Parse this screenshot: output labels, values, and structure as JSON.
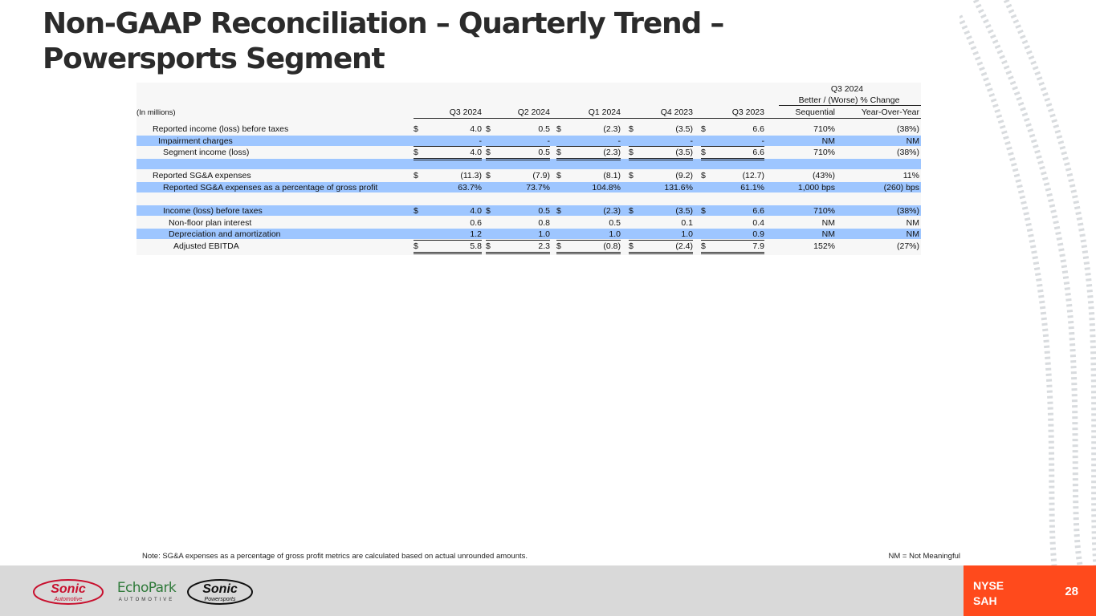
{
  "title": "Non-GAAP Reconciliation – Quarterly Trend – Powersports Segment",
  "table": {
    "unit_label": "(In millions)",
    "group_header_line1": "Q3 2024",
    "group_header_line2": "Better / (Worse) % Change",
    "columns": [
      "Q3 2024",
      "Q2 2024",
      "Q1 2024",
      "Q4 2023",
      "Q3 2023",
      "Sequential",
      "Year-Over-Year"
    ],
    "rows": [
      {
        "label": "Reported income (loss) before taxes",
        "dollar": true,
        "values": [
          "4.0",
          "0.5",
          "(2.3)",
          "(3.5)",
          "6.6",
          "710%",
          "(38%)"
        ]
      },
      {
        "label": "Impairment charges",
        "dollar": false,
        "values": [
          "-",
          "-",
          "-",
          "-",
          "-",
          "NM",
          "NM"
        ]
      },
      {
        "label": "Segment income (loss)",
        "dollar": true,
        "values": [
          "4.0",
          "0.5",
          "(2.3)",
          "(3.5)",
          "6.6",
          "710%",
          "(38%)"
        ]
      },
      {
        "label": "",
        "dollar": false,
        "values": [
          "",
          "",
          "",
          "",
          "",
          "",
          ""
        ]
      },
      {
        "label": "Reported SG&A expenses",
        "dollar": true,
        "values": [
          "(11.3)",
          "(7.9)",
          "(8.1)",
          "(9.2)",
          "(12.7)",
          "(43%)",
          "11%"
        ]
      },
      {
        "label": "Reported SG&A expenses as a percentage of gross profit",
        "dollar": false,
        "values": [
          "63.7%",
          "73.7%",
          "104.8%",
          "131.6%",
          "61.1%",
          "1,000 bps",
          "(260) bps"
        ]
      },
      {
        "label": "",
        "dollar": false,
        "values": [
          "",
          "",
          "",
          "",
          "",
          "",
          ""
        ]
      },
      {
        "label": "Income (loss) before taxes",
        "dollar": true,
        "values": [
          "4.0",
          "0.5",
          "(2.3)",
          "(3.5)",
          "6.6",
          "710%",
          "(38%)"
        ]
      },
      {
        "label": "Non-floor plan interest",
        "dollar": false,
        "values": [
          "0.6",
          "0.8",
          "0.5",
          "0.1",
          "0.4",
          "NM",
          "NM"
        ]
      },
      {
        "label": "Depreciation and amortization",
        "dollar": false,
        "values": [
          "1.2",
          "1.0",
          "1.0",
          "1.0",
          "0.9",
          "NM",
          "NM"
        ]
      },
      {
        "label": "Adjusted EBITDA",
        "dollar": true,
        "values": [
          "5.8",
          "2.3",
          "(0.8)",
          "(2.4)",
          "7.9",
          "152%",
          "(27%)"
        ]
      }
    ]
  },
  "note": "Note: SG&A expenses as a percentage of gross profit metrics are calculated based on actual unrounded amounts.",
  "nm_note": "NM = Not Meaningful",
  "footer": {
    "logo1_line1": "Sonic",
    "logo1_line2": "Automotive",
    "logo2_line1": "EchoPark",
    "logo2_line2": "AUTOMOTIVE",
    "logo3_line1": "Sonic",
    "logo3_line2": "Powersports",
    "exchange": "NYSE",
    "ticker": "SAH",
    "page_number": "28"
  },
  "colors": {
    "band": "#9ec6ff",
    "accent": "#ff4a1c",
    "footer": "#d9d9d9"
  }
}
